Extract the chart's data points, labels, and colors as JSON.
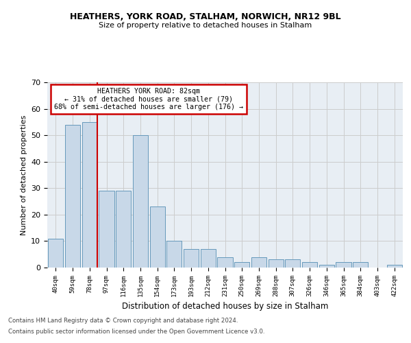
{
  "title1": "HEATHERS, YORK ROAD, STALHAM, NORWICH, NR12 9BL",
  "title2": "Size of property relative to detached houses in Stalham",
  "xlabel": "Distribution of detached houses by size in Stalham",
  "ylabel": "Number of detached properties",
  "bin_labels": [
    "40sqm",
    "59sqm",
    "78sqm",
    "97sqm",
    "116sqm",
    "135sqm",
    "154sqm",
    "173sqm",
    "193sqm",
    "212sqm",
    "231sqm",
    "250sqm",
    "269sqm",
    "288sqm",
    "307sqm",
    "326sqm",
    "346sqm",
    "365sqm",
    "384sqm",
    "403sqm",
    "422sqm"
  ],
  "bar_heights": [
    11,
    54,
    55,
    29,
    29,
    50,
    23,
    10,
    7,
    7,
    4,
    2,
    4,
    3,
    3,
    2,
    1,
    2,
    2,
    0,
    1
  ],
  "bar_color": "#c8d8e8",
  "bar_edgecolor": "#6699bb",
  "highlight_bin_index": 2,
  "highlight_color": "#cc0000",
  "annotation_text": "HEATHERS YORK ROAD: 82sqm\n← 31% of detached houses are smaller (79)\n68% of semi-detached houses are larger (176) →",
  "annotation_box_color": "#ffffff",
  "annotation_box_edgecolor": "#cc0000",
  "ylim": [
    0,
    70
  ],
  "yticks": [
    0,
    10,
    20,
    30,
    40,
    50,
    60,
    70
  ],
  "grid_color": "#cccccc",
  "bg_color": "#e8eef4",
  "footer1": "Contains HM Land Registry data © Crown copyright and database right 2024.",
  "footer2": "Contains public sector information licensed under the Open Government Licence v3.0."
}
